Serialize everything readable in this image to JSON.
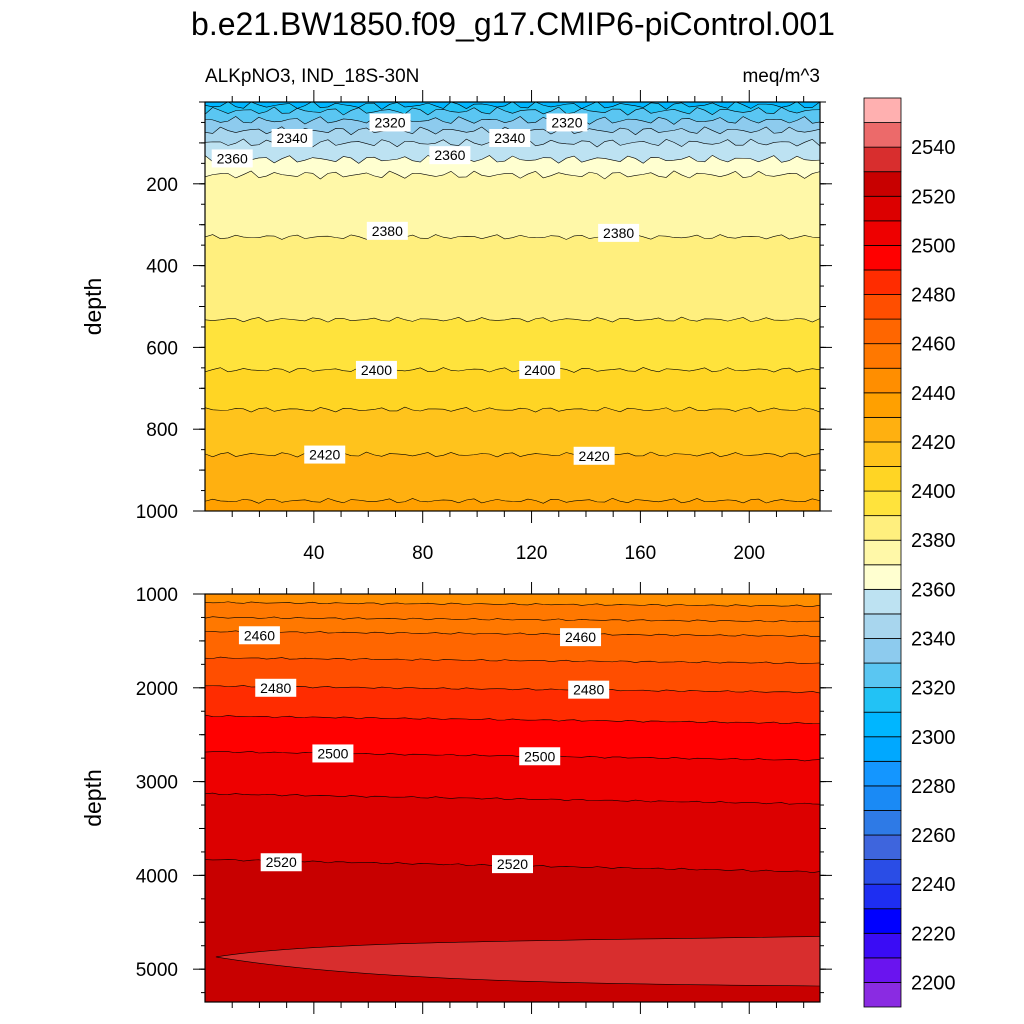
{
  "chart_data": {
    "type": "contour",
    "title": "b.e21.BW1850.f09_g17.CMIP6-piControl.001",
    "subtitle_left": "ALKpNO3, IND_18S-30N",
    "subtitle_right": "meq/m^3",
    "ylabel": "depth",
    "xlim": [
      0,
      226
    ],
    "x_ticks": [
      "40",
      "80",
      "120",
      "160",
      "200"
    ],
    "x_tick_values": [
      40,
      80,
      120,
      160,
      200
    ],
    "colorbar": {
      "levels": [
        2200,
        2210,
        2220,
        2230,
        2240,
        2250,
        2260,
        2270,
        2280,
        2290,
        2300,
        2310,
        2320,
        2330,
        2340,
        2350,
        2360,
        2370,
        2380,
        2390,
        2400,
        2410,
        2420,
        2430,
        2440,
        2450,
        2460,
        2470,
        2480,
        2490,
        2500,
        2510,
        2520,
        2530,
        2540,
        2550
      ],
      "colors": [
        "#8a2be2",
        "#6a14ef",
        "#3a0cf5",
        "#0000ff",
        "#1e2ef2",
        "#2a4de6",
        "#3e65dd",
        "#2e7ae6",
        "#1a8af5",
        "#1496ff",
        "#00a8ff",
        "#00b6ff",
        "#22c2f5",
        "#5ac6f2",
        "#8dcbee",
        "#a8d6ee",
        "#bde2f2",
        "#ffffd0",
        "#fff8a8",
        "#ffef7e",
        "#ffe33c",
        "#ffd524",
        "#ffc31c",
        "#ffb010",
        "#ffa000",
        "#ff8e00",
        "#ff7800",
        "#ff6600",
        "#ff4e00",
        "#ff2c00",
        "#ff0000",
        "#ee0000",
        "#dc0000",
        "#c80000",
        "#d82e2e",
        "#ec6a6a",
        "#ffb0b0"
      ],
      "tick_labels": [
        "2200",
        "2220",
        "2240",
        "2260",
        "2280",
        "2300",
        "2320",
        "2340",
        "2360",
        "2380",
        "2400",
        "2420",
        "2440",
        "2460",
        "2480",
        "2500",
        "2520",
        "2540"
      ],
      "tick_values": [
        2200,
        2220,
        2240,
        2260,
        2280,
        2300,
        2320,
        2340,
        2360,
        2380,
        2400,
        2420,
        2440,
        2460,
        2480,
        2500,
        2520,
        2540
      ]
    },
    "panels": [
      {
        "name": "upper",
        "ylim": [
          1000,
          0
        ],
        "y_ticks": [
          "200",
          "400",
          "600",
          "800",
          "1000"
        ],
        "y_tick_values": [
          200,
          400,
          600,
          800,
          1000
        ],
        "contours": [
          {
            "level": 2310,
            "depth": 8
          },
          {
            "level": 2320,
            "depth": 22
          },
          {
            "level": 2330,
            "depth": 45
          },
          {
            "level": 2340,
            "depth": 70
          },
          {
            "level": 2350,
            "depth": 100
          },
          {
            "level": 2360,
            "depth": 140
          },
          {
            "level": 2370,
            "depth": 178
          },
          {
            "level": 2380,
            "depth": 330
          },
          {
            "level": 2390,
            "depth": 532
          },
          {
            "level": 2400,
            "depth": 655
          },
          {
            "level": 2410,
            "depth": 752
          },
          {
            "level": 2420,
            "depth": 862
          },
          {
            "level": 2430,
            "depth": 975
          }
        ],
        "contour_labels": [
          {
            "text": "2360",
            "x": 10,
            "depth": 138
          },
          {
            "text": "2340",
            "x": 32,
            "depth": 88
          },
          {
            "text": "2320",
            "x": 68,
            "depth": 50
          },
          {
            "text": "2360",
            "x": 90,
            "depth": 130
          },
          {
            "text": "2340",
            "x": 112,
            "depth": 88
          },
          {
            "text": "2320",
            "x": 133,
            "depth": 50
          },
          {
            "text": "2380",
            "x": 67,
            "depth": 315
          },
          {
            "text": "2380",
            "x": 152,
            "depth": 320
          },
          {
            "text": "2400",
            "x": 63,
            "depth": 655
          },
          {
            "text": "2400",
            "x": 123,
            "depth": 655
          },
          {
            "text": "2420",
            "x": 44,
            "depth": 862
          },
          {
            "text": "2420",
            "x": 143,
            "depth": 865
          }
        ]
      },
      {
        "name": "lower",
        "ylim": [
          5350,
          1000
        ],
        "y_ticks": [
          "1000",
          "2000",
          "3000",
          "4000",
          "5000"
        ],
        "y_tick_values": [
          1000,
          2000,
          3000,
          4000,
          5000
        ],
        "contours": [
          {
            "level": 2450,
            "depth": 1090
          },
          {
            "level": 2455,
            "depth": 1250
          },
          {
            "level": 2460,
            "depth": 1400
          },
          {
            "level": 2470,
            "depth": 1680
          },
          {
            "level": 2480,
            "depth": 1980
          },
          {
            "level": 2490,
            "depth": 2300
          },
          {
            "level": 2500,
            "depth": 2680
          },
          {
            "level": 2510,
            "depth": 3130
          },
          {
            "level": 2520,
            "depth": 3830
          }
        ],
        "contour_labels": [
          {
            "text": "2460",
            "x": 20,
            "depth": 1440
          },
          {
            "text": "2460",
            "x": 138,
            "depth": 1460
          },
          {
            "text": "2480",
            "x": 26,
            "depth": 2000
          },
          {
            "text": "2480",
            "x": 141,
            "depth": 2020
          },
          {
            "text": "2500",
            "x": 47,
            "depth": 2700
          },
          {
            "text": "2500",
            "x": 123,
            "depth": 2730
          },
          {
            "text": "2520",
            "x": 28,
            "depth": 3860
          },
          {
            "text": "2520",
            "x": 113,
            "depth": 3880
          }
        ],
        "bottom_pocket": {
          "level": 2530
        }
      }
    ]
  }
}
